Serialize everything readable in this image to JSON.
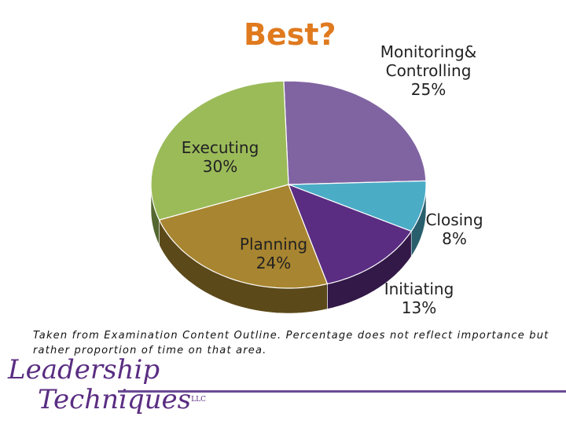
{
  "title": "Best?",
  "chart_data": {
    "type": "pie",
    "categories": [
      "Monitoring& Controlling",
      "Closing",
      "Initiating",
      "Planning",
      "Executing"
    ],
    "values": [
      25,
      8,
      13,
      24,
      30
    ],
    "value_labels": [
      "25%",
      "8%",
      "13%",
      "24%",
      "30%"
    ],
    "colors": [
      "#8064a2",
      "#4bacc6",
      "#5a2d82",
      "#a88530",
      "#9bbb59"
    ]
  },
  "note": "Taken from Examination Content Outline. Percentage does not reflect importance but rather proportion of time on that area.",
  "logo": {
    "line1": "Leadership",
    "line2": "Techniques",
    "suffix": "LLC"
  }
}
